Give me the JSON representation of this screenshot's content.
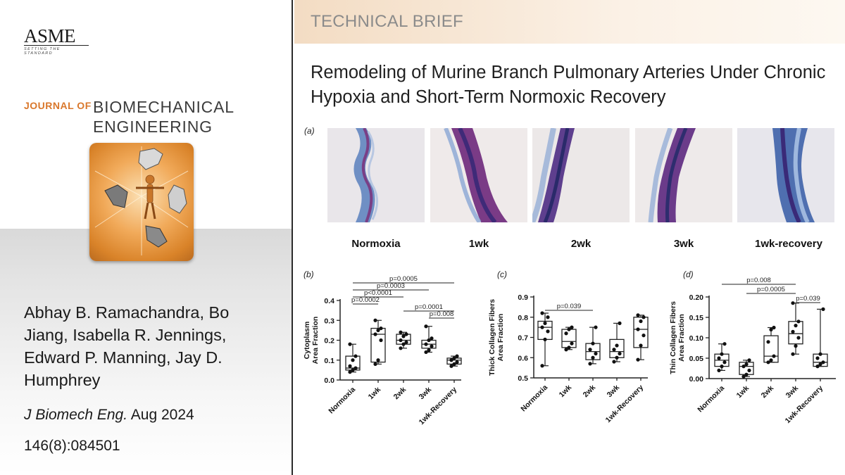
{
  "sidebar": {
    "publisher": "ASME",
    "publisher_tagline": "SETTING THE STANDARD",
    "journal_prefix": "JOURNAL OF",
    "journal_title_line1": "BIOMECHANICAL",
    "journal_title_line2": "ENGINEERING",
    "authors": "Abhay B. Ramachandra, Bo Jiang, Isabella R. Jennings, Edward P. Manning, Jay D. Humphrey",
    "journal_abbrev": "J Biomech Eng.",
    "date": "Aug 2024",
    "volume_issue": "146(8):084501"
  },
  "main": {
    "section_label": "TECHNICAL BRIEF",
    "title": "Remodeling of Murine Branch Pulmonary Arteries Under Chronic Hypoxia and Short-Term Normoxic Recovery",
    "panel_a_label": "(a)",
    "micrographs": [
      {
        "label": "Normoxia"
      },
      {
        "label": "1wk"
      },
      {
        "label": "2wk"
      },
      {
        "label": "3wk"
      },
      {
        "label": "1wk-recovery"
      }
    ]
  },
  "chart_data": [
    {
      "panel": "(b)",
      "type": "box",
      "ylabel": "Cytoplasm Area Fraction",
      "ylim": [
        0,
        0.4
      ],
      "yticks": [
        "0.0",
        "0.1",
        "0.2",
        "0.3",
        "0.4"
      ],
      "categories": [
        "Normoxia",
        "1wk",
        "2wk",
        "3wk",
        "1wk-Recovery"
      ],
      "boxes": [
        {
          "min": 0.04,
          "q1": 0.05,
          "median": 0.06,
          "q3": 0.12,
          "max": 0.18,
          "points": [
            0.04,
            0.05,
            0.06,
            0.07,
            0.1,
            0.12,
            0.18
          ]
        },
        {
          "min": 0.08,
          "q1": 0.09,
          "median": 0.23,
          "q3": 0.26,
          "max": 0.3,
          "points": [
            0.08,
            0.1,
            0.2,
            0.23,
            0.25,
            0.26,
            0.3
          ]
        },
        {
          "min": 0.16,
          "q1": 0.18,
          "median": 0.2,
          "q3": 0.23,
          "max": 0.24,
          "points": [
            0.16,
            0.18,
            0.19,
            0.2,
            0.22,
            0.23,
            0.24
          ]
        },
        {
          "min": 0.14,
          "q1": 0.16,
          "median": 0.18,
          "q3": 0.2,
          "max": 0.27,
          "points": [
            0.14,
            0.15,
            0.17,
            0.18,
            0.2,
            0.21,
            0.27
          ]
        },
        {
          "min": 0.07,
          "q1": 0.08,
          "median": 0.1,
          "q3": 0.11,
          "max": 0.12,
          "points": [
            0.07,
            0.08,
            0.09,
            0.1,
            0.11,
            0.12
          ]
        }
      ],
      "comparisons": [
        {
          "from": 0,
          "to": 4,
          "label": "p=0.0005"
        },
        {
          "from": 0,
          "to": 3,
          "label": "p=0.0003"
        },
        {
          "from": 0,
          "to": 2,
          "label": "p<0.0001"
        },
        {
          "from": 0,
          "to": 1,
          "label": "p=0.0002"
        },
        {
          "from": 2,
          "to": 4,
          "label": "p=0.0001"
        },
        {
          "from": 3,
          "to": 4,
          "label": "p=0.008"
        }
      ]
    },
    {
      "panel": "(c)",
      "type": "box",
      "ylabel": "Thick Collagen Fibers Area Fraction",
      "ylim": [
        0.5,
        0.9
      ],
      "yticks": [
        "0.5",
        "0.6",
        "0.7",
        "0.8",
        "0.9"
      ],
      "categories": [
        "Normoxia",
        "1wk",
        "2wk",
        "3wk",
        "1wk-Recovery"
      ],
      "boxes": [
        {
          "min": 0.56,
          "q1": 0.69,
          "median": 0.75,
          "q3": 0.78,
          "max": 0.82,
          "points": [
            0.56,
            0.69,
            0.73,
            0.75,
            0.77,
            0.8,
            0.82
          ]
        },
        {
          "min": 0.64,
          "q1": 0.65,
          "median": 0.68,
          "q3": 0.74,
          "max": 0.75,
          "points": [
            0.64,
            0.65,
            0.67,
            0.72,
            0.74,
            0.75
          ]
        },
        {
          "min": 0.57,
          "q1": 0.59,
          "median": 0.63,
          "q3": 0.67,
          "max": 0.75,
          "points": [
            0.57,
            0.6,
            0.62,
            0.64,
            0.67,
            0.75
          ]
        },
        {
          "min": 0.58,
          "q1": 0.6,
          "median": 0.63,
          "q3": 0.69,
          "max": 0.77,
          "points": [
            0.58,
            0.6,
            0.62,
            0.64,
            0.66,
            0.77
          ]
        },
        {
          "min": 0.59,
          "q1": 0.65,
          "median": 0.74,
          "q3": 0.8,
          "max": 0.81,
          "points": [
            0.59,
            0.66,
            0.71,
            0.74,
            0.78,
            0.8,
            0.81
          ]
        }
      ],
      "comparisons": [
        {
          "from": 0,
          "to": 2,
          "label": "p=0.039"
        }
      ]
    },
    {
      "panel": "(d)",
      "type": "box",
      "ylabel": "Thin Collagen Fibers Area Fraction",
      "ylim": [
        0,
        0.2
      ],
      "yticks": [
        "0.00",
        "0.05",
        "0.10",
        "0.15",
        "0.20"
      ],
      "categories": [
        "Normoxia",
        "1wk",
        "2wk",
        "3wk",
        "1wk-Recovery"
      ],
      "boxes": [
        {
          "min": 0.02,
          "q1": 0.03,
          "median": 0.045,
          "q3": 0.06,
          "max": 0.085,
          "points": [
            0.02,
            0.03,
            0.04,
            0.05,
            0.06,
            0.085
          ]
        },
        {
          "min": 0.005,
          "q1": 0.01,
          "median": 0.03,
          "q3": 0.04,
          "max": 0.045,
          "points": [
            0.005,
            0.01,
            0.02,
            0.03,
            0.035,
            0.045
          ]
        },
        {
          "min": 0.04,
          "q1": 0.04,
          "median": 0.055,
          "q3": 0.105,
          "max": 0.125,
          "points": [
            0.04,
            0.045,
            0.055,
            0.09,
            0.12,
            0.125
          ]
        },
        {
          "min": 0.06,
          "q1": 0.085,
          "median": 0.11,
          "q3": 0.14,
          "max": 0.185,
          "points": [
            0.06,
            0.08,
            0.1,
            0.115,
            0.13,
            0.14,
            0.185
          ]
        },
        {
          "min": 0.03,
          "q1": 0.03,
          "median": 0.04,
          "q3": 0.06,
          "max": 0.17,
          "points": [
            0.03,
            0.035,
            0.04,
            0.05,
            0.06,
            0.17
          ]
        }
      ],
      "comparisons": [
        {
          "from": 0,
          "to": 3,
          "label": "p=0.008"
        },
        {
          "from": 1,
          "to": 3,
          "label": "p=0.0005"
        },
        {
          "from": 3,
          "to": 4,
          "label": "p=0.039"
        }
      ]
    }
  ]
}
